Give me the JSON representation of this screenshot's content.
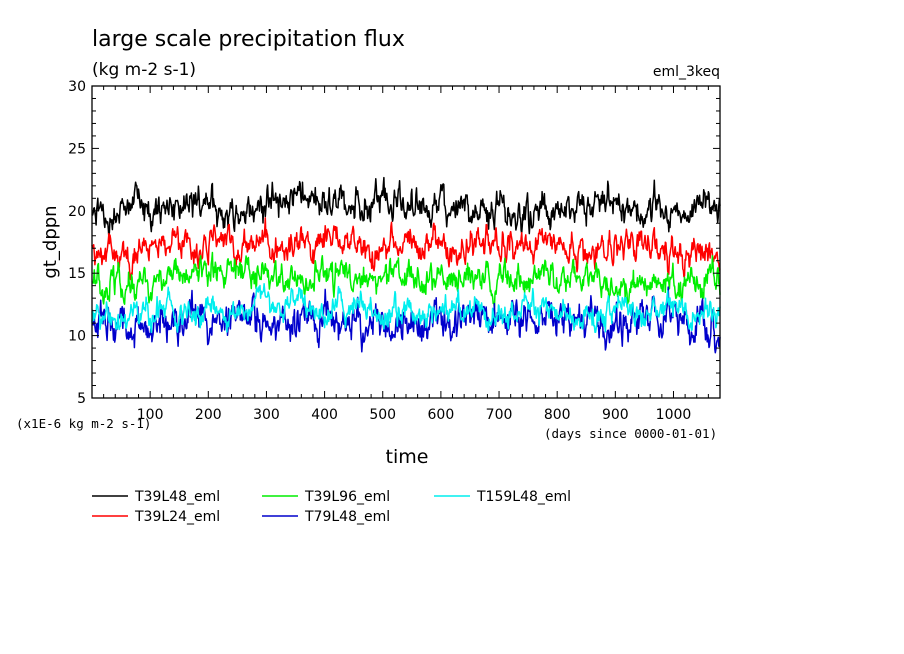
{
  "chart_data": {
    "type": "line",
    "title": "large scale precipitation flux",
    "subtitle": "(kg m-2 s-1)",
    "experiment": "eml_3keq",
    "ylabel": "gt_dppn",
    "xlabel": "time",
    "y_unit_note": "(x1E-6 kg m-2 s-1)",
    "x_unit_note": "(days since 0000-01-01)",
    "xlim": [
      0,
      1080
    ],
    "ylim": [
      5,
      30
    ],
    "x_ticks": [
      "100",
      "200",
      "300",
      "400",
      "500",
      "600",
      "700",
      "800",
      "900",
      "1000"
    ],
    "y_ticks": [
      "5",
      "10",
      "15",
      "20",
      "25",
      "30"
    ],
    "legend_position": "bottom-left",
    "series": [
      {
        "name": "T39L48_eml",
        "color": "#000000",
        "mean": 20.0,
        "amp": 1.2,
        "x": [
          0,
          120,
          240,
          360,
          480,
          600,
          720,
          840,
          960,
          1080
        ],
        "values": [
          19.5,
          20.5,
          20.0,
          21.0,
          20.5,
          20.0,
          20.0,
          20.5,
          20.0,
          20.5
        ]
      },
      {
        "name": "T39L24_eml",
        "color": "#ff0000",
        "mean": 17.0,
        "amp": 1.1,
        "x": [
          0,
          120,
          240,
          360,
          480,
          600,
          720,
          840,
          960,
          1080
        ],
        "values": [
          16.5,
          17.0,
          17.0,
          17.5,
          17.0,
          17.5,
          17.0,
          17.0,
          17.0,
          16.5
        ]
      },
      {
        "name": "T39L96_eml",
        "color": "#00ee00",
        "mean": 14.5,
        "amp": 1.1,
        "x": [
          0,
          120,
          240,
          360,
          480,
          600,
          720,
          840,
          960,
          1080
        ],
        "values": [
          14.0,
          14.5,
          15.0,
          14.5,
          15.0,
          14.5,
          14.5,
          14.5,
          14.0,
          14.5
        ]
      },
      {
        "name": "T79L48_eml",
        "color": "#0000cc",
        "mean": 11.3,
        "amp": 1.4,
        "x": [
          0,
          120,
          240,
          360,
          480,
          600,
          720,
          840,
          960,
          1080
        ],
        "values": [
          11.0,
          11.0,
          11.5,
          11.5,
          11.0,
          11.5,
          11.5,
          11.0,
          11.5,
          11.0
        ]
      },
      {
        "name": "T159L48_eml",
        "color": "#00eeee",
        "mean": 12.0,
        "amp": 1.0,
        "x": [
          0,
          120,
          240,
          360,
          480,
          600,
          720,
          840,
          960,
          1080
        ],
        "values": [
          11.5,
          12.0,
          12.0,
          12.5,
          12.0,
          12.0,
          12.0,
          12.0,
          12.0,
          12.0
        ]
      }
    ]
  }
}
